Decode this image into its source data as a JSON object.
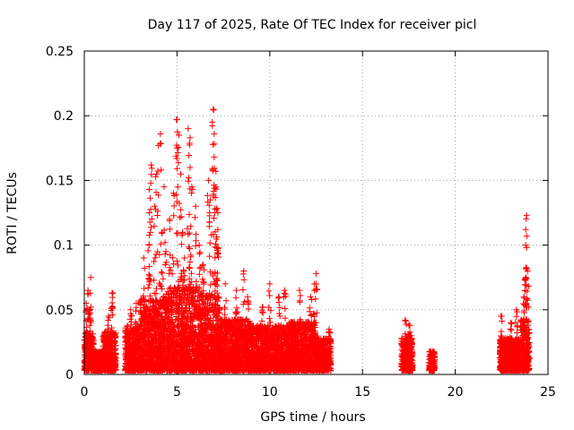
{
  "chart_data": {
    "type": "scatter",
    "title": "Day 117 of 2025, Rate Of TEC Index for receiver picl",
    "xlabel": "GPS time / hours",
    "ylabel": "ROTI / TECUs",
    "xlim": [
      0,
      25
    ],
    "ylim": [
      0,
      0.25
    ],
    "x_ticks": [
      0,
      5,
      10,
      15,
      20,
      25
    ],
    "x_tick_labels": [
      "0",
      "5",
      "10",
      "15",
      "20",
      "25"
    ],
    "y_ticks": [
      0,
      0.05,
      0.1,
      0.15,
      0.2,
      0.25
    ],
    "y_tick_labels": [
      "0",
      "0.05",
      "0.1",
      "0.15",
      "0.2",
      "0.25"
    ],
    "grid": true,
    "marker": "+",
    "color": "#ff0000",
    "series": [
      {
        "name": "ROTI",
        "segments": [
          {
            "x_start": 0.0,
            "x_end": 0.5,
            "typical_max": 0.03,
            "peaks": [
              [
                0.1,
                0.055
              ],
              [
                0.2,
                0.065
              ],
              [
                0.35,
                0.075
              ],
              [
                0.3,
                0.05
              ]
            ]
          },
          {
            "x_start": 0.5,
            "x_end": 1.0,
            "typical_max": 0.015,
            "peaks": []
          },
          {
            "x_start": 1.0,
            "x_end": 1.7,
            "typical_max": 0.03,
            "peaks": [
              [
                1.3,
                0.045
              ],
              [
                1.5,
                0.052
              ],
              [
                1.5,
                0.063
              ]
            ]
          },
          {
            "x_start": 2.2,
            "x_end": 3.0,
            "typical_max": 0.035,
            "peaks": [
              [
                2.5,
                0.05
              ],
              [
                2.8,
                0.055
              ]
            ]
          },
          {
            "x_start": 3.0,
            "x_end": 4.5,
            "typical_max": 0.055,
            "peaks": [
              [
                3.2,
                0.09
              ],
              [
                3.5,
                0.1
              ],
              [
                3.5,
                0.125
              ],
              [
                3.5,
                0.143
              ],
              [
                3.6,
                0.162
              ],
              [
                3.8,
                0.13
              ],
              [
                3.9,
                0.155
              ],
              [
                4.0,
                0.177
              ],
              [
                4.1,
                0.186
              ],
              [
                4.2,
                0.11
              ],
              [
                4.3,
                0.145
              ],
              [
                4.4,
                0.095
              ]
            ]
          },
          {
            "x_start": 4.5,
            "x_end": 5.5,
            "typical_max": 0.065,
            "peaks": [
              [
                4.6,
                0.12
              ],
              [
                4.8,
                0.14
              ],
              [
                5.0,
                0.175
              ],
              [
                5.0,
                0.197
              ],
              [
                5.1,
                0.185
              ],
              [
                5.2,
                0.155
              ],
              [
                5.3,
                0.11
              ],
              [
                5.4,
                0.09
              ]
            ]
          },
          {
            "x_start": 5.5,
            "x_end": 6.5,
            "typical_max": 0.065,
            "peaks": [
              [
                5.6,
                0.19
              ],
              [
                5.7,
                0.183
              ],
              [
                5.7,
                0.16
              ],
              [
                5.8,
                0.145
              ],
              [
                6.0,
                0.13
              ],
              [
                6.2,
                0.1
              ],
              [
                6.4,
                0.085
              ]
            ]
          },
          {
            "x_start": 6.5,
            "x_end": 7.3,
            "typical_max": 0.06,
            "peaks": [
              [
                6.7,
                0.15
              ],
              [
                6.8,
                0.135
              ],
              [
                6.9,
                0.195
              ],
              [
                6.95,
                0.205
              ],
              [
                7.0,
                0.186
              ],
              [
                7.0,
                0.168
              ],
              [
                7.1,
                0.157
              ],
              [
                7.1,
                0.145
              ],
              [
                7.2,
                0.125
              ],
              [
                7.2,
                0.112
              ]
            ]
          },
          {
            "x_start": 7.3,
            "x_end": 9.0,
            "typical_max": 0.04,
            "peaks": [
              [
                7.6,
                0.07
              ],
              [
                8.2,
                0.065
              ],
              [
                8.6,
                0.08
              ],
              [
                8.8,
                0.06
              ]
            ]
          },
          {
            "x_start": 9.0,
            "x_end": 11.0,
            "typical_max": 0.035,
            "peaks": [
              [
                9.6,
                0.052
              ],
              [
                10.0,
                0.07
              ],
              [
                10.5,
                0.06
              ],
              [
                10.8,
                0.065
              ]
            ]
          },
          {
            "x_start": 11.0,
            "x_end": 12.5,
            "typical_max": 0.038,
            "peaks": [
              [
                11.6,
                0.065
              ],
              [
                12.2,
                0.06
              ],
              [
                12.5,
                0.078
              ],
              [
                12.4,
                0.07
              ]
            ]
          },
          {
            "x_start": 12.5,
            "x_end": 13.3,
            "typical_max": 0.025,
            "peaks": [
              [
                13.2,
                0.035
              ]
            ]
          },
          {
            "x_start": 17.1,
            "x_end": 17.7,
            "typical_max": 0.025,
            "peaks": [
              [
                17.3,
                0.042
              ],
              [
                17.5,
                0.038
              ],
              [
                17.6,
                0.03
              ]
            ]
          },
          {
            "x_start": 18.6,
            "x_end": 18.9,
            "typical_max": 0.015,
            "peaks": []
          },
          {
            "x_start": 22.4,
            "x_end": 23.5,
            "typical_max": 0.025,
            "peaks": [
              [
                22.5,
                0.045
              ],
              [
                23.0,
                0.04
              ],
              [
                23.3,
                0.05
              ]
            ]
          },
          {
            "x_start": 23.5,
            "x_end": 24.0,
            "typical_max": 0.04,
            "peaks": [
              [
                23.7,
                0.06
              ],
              [
                23.8,
                0.075
              ],
              [
                23.8,
                0.1
              ],
              [
                23.8,
                0.112
              ],
              [
                23.85,
                0.123
              ],
              [
                23.9,
                0.08
              ]
            ]
          }
        ]
      }
    ]
  }
}
